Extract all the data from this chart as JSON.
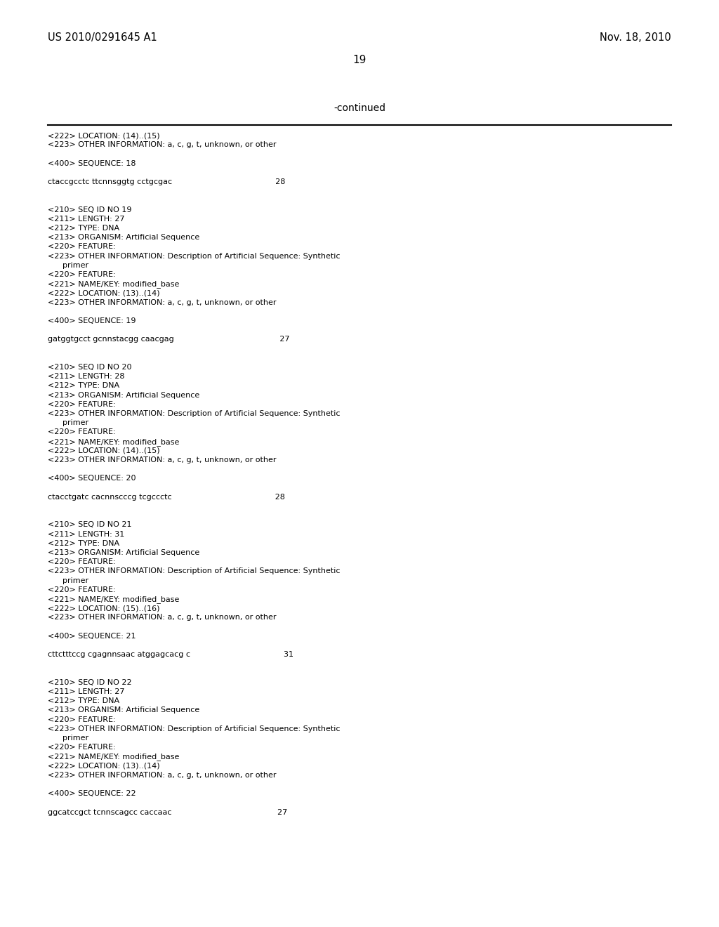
{
  "background_color": "#ffffff",
  "header_left": "US 2010/0291645 A1",
  "header_right": "Nov. 18, 2010",
  "page_number": "19",
  "continued_label": "-continued",
  "text_color": "#000000",
  "mono_font": "Courier New",
  "serif_font": "Times New Roman",
  "font_size_header": 10.5,
  "font_size_page": 11,
  "font_size_continued": 10,
  "font_size_body": 8.0,
  "body_lines": [
    "<222> LOCATION: (14)..(15)",
    "<223> OTHER INFORMATION: a, c, g, t, unknown, or other",
    "",
    "<400> SEQUENCE: 18",
    "",
    "ctaccgcctc ttcnnsggtg cctgcgac                                          28",
    "",
    "",
    "<210> SEQ ID NO 19",
    "<211> LENGTH: 27",
    "<212> TYPE: DNA",
    "<213> ORGANISM: Artificial Sequence",
    "<220> FEATURE:",
    "<223> OTHER INFORMATION: Description of Artificial Sequence: Synthetic",
    "      primer",
    "<220> FEATURE:",
    "<221> NAME/KEY: modified_base",
    "<222> LOCATION: (13)..(14)",
    "<223> OTHER INFORMATION: a, c, g, t, unknown, or other",
    "",
    "<400> SEQUENCE: 19",
    "",
    "gatggtgcct gcnnstacgg caacgag                                           27",
    "",
    "",
    "<210> SEQ ID NO 20",
    "<211> LENGTH: 28",
    "<212> TYPE: DNA",
    "<213> ORGANISM: Artificial Sequence",
    "<220> FEATURE:",
    "<223> OTHER INFORMATION: Description of Artificial Sequence: Synthetic",
    "      primer",
    "<220> FEATURE:",
    "<221> NAME/KEY: modified_base",
    "<222> LOCATION: (14)..(15)",
    "<223> OTHER INFORMATION: a, c, g, t, unknown, or other",
    "",
    "<400> SEQUENCE: 20",
    "",
    "ctacctgatc cacnnscccg tcgccctc                                          28",
    "",
    "",
    "<210> SEQ ID NO 21",
    "<211> LENGTH: 31",
    "<212> TYPE: DNA",
    "<213> ORGANISM: Artificial Sequence",
    "<220> FEATURE:",
    "<223> OTHER INFORMATION: Description of Artificial Sequence: Synthetic",
    "      primer",
    "<220> FEATURE:",
    "<221> NAME/KEY: modified_base",
    "<222> LOCATION: (15)..(16)",
    "<223> OTHER INFORMATION: a, c, g, t, unknown, or other",
    "",
    "<400> SEQUENCE: 21",
    "",
    "cttctttccg cgagnnsaac atggagcacg c                                      31",
    "",
    "",
    "<210> SEQ ID NO 22",
    "<211> LENGTH: 27",
    "<212> TYPE: DNA",
    "<213> ORGANISM: Artificial Sequence",
    "<220> FEATURE:",
    "<223> OTHER INFORMATION: Description of Artificial Sequence: Synthetic",
    "      primer",
    "<220> FEATURE:",
    "<221> NAME/KEY: modified_base",
    "<222> LOCATION: (13)..(14)",
    "<223> OTHER INFORMATION: a, c, g, t, unknown, or other",
    "",
    "<400> SEQUENCE: 22",
    "",
    "ggcatccgct tcnnscagcc caccaac                                           27"
  ]
}
